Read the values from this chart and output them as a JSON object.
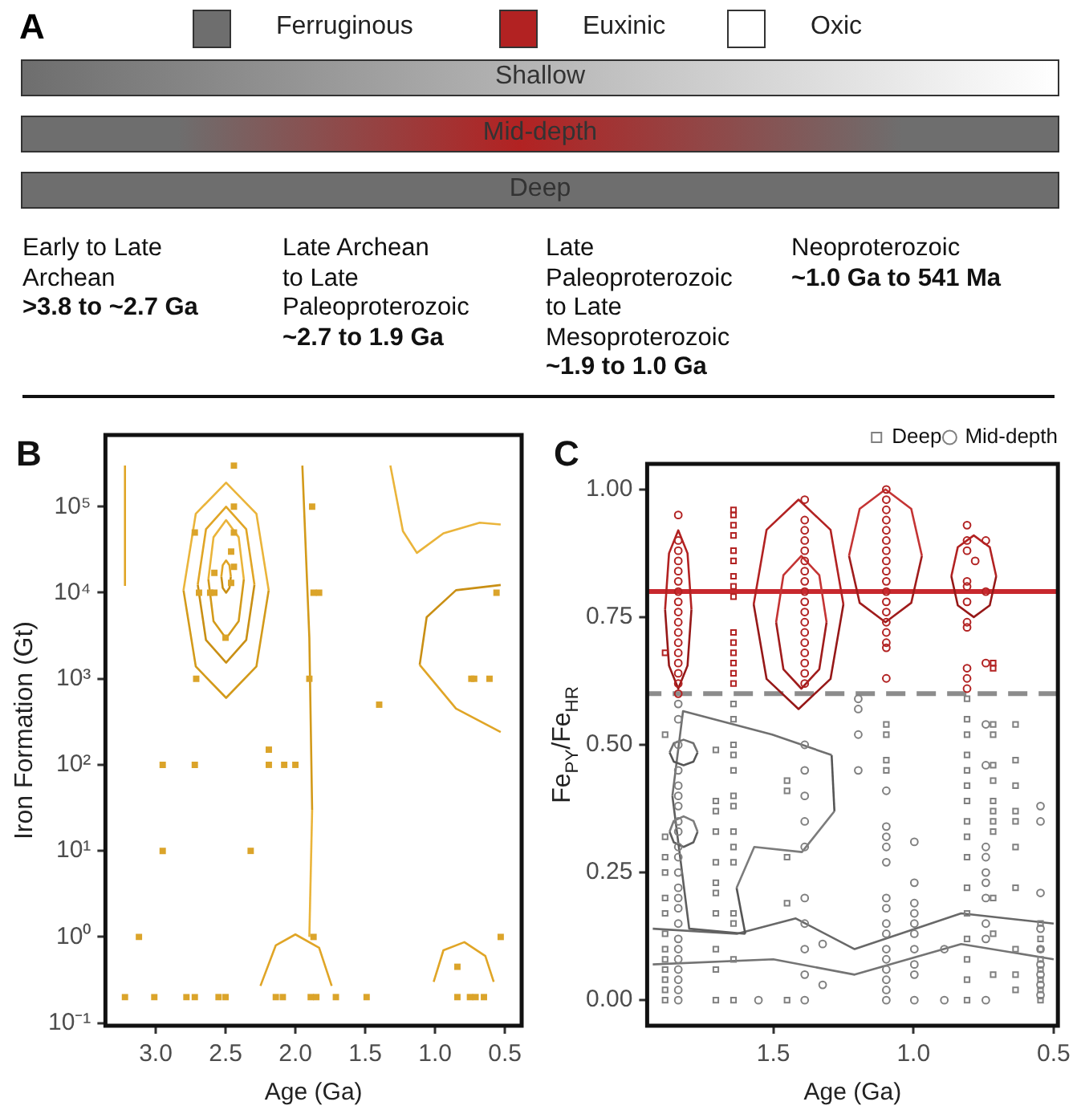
{
  "chart_data": [
    {
      "type": "other",
      "title": "A",
      "categories": [
        "Ferruginous",
        "Euxinic",
        "Oxic"
      ],
      "colors": [
        "#6e6e6e",
        "#b22222",
        "#ffffff"
      ],
      "y_categories": [
        "Shallow",
        "Mid-depth",
        "Deep"
      ],
      "annotations": [
        "Early to Late\nArchean",
        ">3.8 to ~2.7 Ga",
        "Late Archean\nto Late\nPaleoproterozoic",
        "~2.7 to 1.9 Ga",
        "Late\nPaleoproterozoic\nto Late\nMesoproterozoic",
        "~1.9 to 1.0 Ga",
        "Neoproterozoic",
        "~1.0 Ga to 541 Ma"
      ]
    },
    {
      "type": "scatter",
      "title": "B",
      "xlabel": "Age (Ga)",
      "ylabel": "Iron Formation (Gt)",
      "log": "y",
      "grid": false,
      "xlim": [
        3.36,
        0.38
      ],
      "xticks": [
        {
          "value": 3,
          "label": "3.0"
        },
        2.5,
        {
          "value": 2,
          "label": "2.0"
        },
        1.5,
        {
          "value": 1,
          "label": "1.0"
        },
        0.5
      ],
      "ylim": [
        0.093,
        680000
      ],
      "yticks": [
        {
          "value": 0.1,
          "label": "10⁻¹"
        },
        {
          "value": 1,
          "label": "10⁰"
        },
        {
          "value": 10,
          "label": "10¹"
        },
        {
          "value": 100,
          "label": "10²"
        },
        {
          "value": 1000,
          "label": "10³"
        },
        {
          "value": 10000,
          "label": "10⁴"
        },
        {
          "value": 100000,
          "label": "10⁵"
        }
      ],
      "series": [
        {
          "type": "scatter",
          "marker": "square",
          "color": "#dba42a",
          "x": [
            3.22,
            3.01,
            2.78,
            2.72,
            2.55,
            2.5,
            2.14,
            2.09,
            1.89,
            1.85,
            1.71,
            1.49,
            0.84,
            0.75,
            0.71,
            0.65,
            3.12,
            2.95,
            2.95,
            2.72,
            2.44,
            2.44,
            2.44,
            2.46,
            2.44,
            2.58,
            2.46,
            2.69,
            2.61,
            2.58,
            2.5,
            2.71,
            2.72,
            2.19,
            2.19,
            2.08,
            2.0,
            2.32,
            1.88,
            1.87,
            1.83,
            1.9,
            1.87,
            1.4,
            0.74,
            0.72,
            0.61,
            0.56,
            0.53,
            0.84
          ],
          "values": [
            0.2,
            0.2,
            0.2,
            0.2,
            0.2,
            0.2,
            0.2,
            0.2,
            0.2,
            0.2,
            0.2,
            0.2,
            0.2,
            0.2,
            0.2,
            0.2,
            1,
            100,
            10,
            50000,
            300000,
            100000,
            50000,
            30000,
            20000,
            17000,
            13000,
            10000,
            10000,
            10000,
            3000,
            1000,
            100,
            150,
            100,
            100,
            100,
            10,
            100000,
            10000,
            10000,
            1000,
            1,
            500,
            1000,
            1000,
            1000,
            10000,
            1,
            0.45
          ]
        },
        {
          "type": "line",
          "marker": "none",
          "color": "#e0a526",
          "x": [
            2.462,
            2.472,
            2.496,
            2.52,
            2.53
          ],
          "values": [
            15400,
            20900,
            23700,
            20900,
            15400
          ]
        },
        {
          "type": "line",
          "marker": "none",
          "color": "#c98f14",
          "x": [
            2.462,
            2.472,
            2.496,
            2.52,
            2.53
          ],
          "values": [
            15400,
            11350,
            10000,
            11350,
            15400
          ]
        },
        {
          "type": "line",
          "marker": "none",
          "color": "#eab43a",
          "x": [
            2.369,
            2.406,
            2.496,
            2.586,
            2.623
          ],
          "values": [
            14300,
            44100,
            69800,
            44100,
            14300
          ]
        },
        {
          "type": "line",
          "marker": "none",
          "color": "#d39a1a",
          "x": [
            2.369,
            2.406,
            2.496,
            2.586,
            2.623
          ],
          "values": [
            14300,
            4660,
            2940,
            4660,
            14300
          ]
        },
        {
          "type": "line",
          "marker": "none",
          "color": "#e0a526",
          "x": [
            2.293,
            2.352,
            2.496,
            2.64,
            2.699
          ],
          "values": [
            12400,
            54600,
            100000,
            54600,
            12400
          ]
        },
        {
          "type": "line",
          "marker": "none",
          "color": "#c98f14",
          "x": [
            2.293,
            2.352,
            2.496,
            2.64,
            2.699
          ],
          "values": [
            12400,
            2820,
            1540,
            2820,
            12400
          ]
        },
        {
          "type": "line",
          "marker": "none",
          "color": "#eab43a",
          "x": [
            2.191,
            2.279,
            2.496,
            2.713,
            2.801
          ],
          "values": [
            10700,
            82800,
            190000,
            82800,
            10700
          ]
        },
        {
          "type": "line",
          "marker": "none",
          "color": "#d39a1a",
          "x": [
            2.191,
            2.279,
            2.496,
            2.713,
            2.801
          ],
          "values": [
            10700,
            1390,
            600,
            1390,
            10700
          ]
        },
        {
          "type": "line",
          "marker": "none",
          "color": "#e0a526",
          "x": [
            1.74,
            1.83,
            2.0,
            2.14,
            2.25
          ],
          "values": [
            0.27,
            0.75,
            1.07,
            0.8,
            0.27
          ]
        },
        {
          "type": "line",
          "marker": "none",
          "color": "#e0a526",
          "x": [
            0.58,
            0.64,
            0.79,
            0.94,
            1.01
          ],
          "values": [
            0.3,
            0.6,
            0.87,
            0.7,
            0.3
          ]
        },
        {
          "type": "line",
          "marker": "none",
          "color": "#e0a526",
          "x": [
            0.53,
            0.85,
            1.11
          ],
          "values": [
            240,
            450,
            1450
          ]
        },
        {
          "type": "line",
          "marker": "none",
          "color": "#c98f14",
          "x": [
            0.53,
            0.85,
            1.06,
            1.11
          ],
          "values": [
            12300,
            10700,
            5200,
            1450
          ]
        },
        {
          "type": "line",
          "marker": "none",
          "color": "#eab43a",
          "x": [
            0.53,
            0.68,
            0.94,
            1.13,
            1.23,
            1.32
          ],
          "values": [
            62000,
            65000,
            49000,
            29000,
            52000,
            300000
          ]
        },
        {
          "type": "line",
          "marker": "none",
          "color": "#e0a526",
          "x": [
            3.22,
            3.22
          ],
          "values": [
            12000,
            300000
          ]
        },
        {
          "type": "line",
          "marker": "none",
          "color": "#d39a1a",
          "x": [
            1.88,
            1.9,
            1.95
          ],
          "values": [
            30,
            3000,
            300000
          ]
        },
        {
          "type": "line",
          "marker": "none",
          "color": "#eab43a",
          "x": [
            1.88,
            1.9
          ],
          "values": [
            30,
            1
          ]
        }
      ]
    },
    {
      "type": "scatter",
      "title": "C",
      "xlabel": "Age (Ga)",
      "ylabel": "Fe$_{PY}$/Fe$_{HR}$",
      "grid": false,
      "legend": "top right",
      "xlim": [
        1.95,
        0.485
      ],
      "xticks": [
        1.5,
        {
          "value": 1,
          "label": "1.0"
        },
        0.5
      ],
      "ylim": [
        -0.05,
        1.05
      ],
      "yticks": [
        {
          "value": 0,
          "label": "0.00"
        },
        0.25,
        {
          "value": 0.5,
          "label": "0.50"
        },
        0.75,
        {
          "value": 1,
          "label": "1.00"
        }
      ],
      "ref_lines": [
        {
          "axis": "y",
          "value": 0.8,
          "color": "#c8282e",
          "line_style": "solid"
        },
        {
          "axis": "y",
          "value": 0.6,
          "color": "#8c8c8c",
          "line_style": "dashed"
        }
      ],
      "series": [
        {
          "type": "scatter",
          "name": "Deep",
          "marker": "square",
          "color": "#808080",
          "x": [
            1.886,
            1.886,
            1.886,
            1.886,
            1.886,
            1.886,
            1.886,
            1.886,
            1.886,
            1.886,
            1.886,
            1.886,
            1.886,
            1.705,
            1.705,
            1.705,
            1.705,
            1.705,
            1.705,
            1.705,
            1.705,
            1.705,
            1.705,
            1.705,
            1.642,
            1.642,
            1.642,
            1.642,
            1.642,
            1.642,
            1.642,
            1.642,
            1.642,
            1.642,
            1.642,
            1.642,
            1.642,
            1.642,
            1.451,
            1.451,
            1.451,
            1.451,
            1.451,
            1.097,
            1.097,
            1.097,
            1.097,
            0.809,
            0.809,
            0.809,
            0.809,
            0.809,
            0.809,
            0.809,
            0.809,
            0.809,
            0.809,
            0.809,
            0.809,
            0.809,
            0.809,
            0.809,
            0.809,
            0.716,
            0.716,
            0.716,
            0.716,
            0.716,
            0.716,
            0.716,
            0.716,
            0.716,
            0.716,
            0.716,
            0.636,
            0.636,
            0.636,
            0.636,
            0.636,
            0.636,
            0.636,
            0.636,
            0.636,
            0.636,
            0.547,
            0.547,
            0.547,
            0.547,
            0.547,
            0.547,
            0.547,
            0.547
          ],
          "values": [
            0.52,
            0.32,
            0.28,
            0.25,
            0.2,
            0.17,
            0.13,
            0.1,
            0.08,
            0.06,
            0.04,
            0.02,
            0.0,
            0.49,
            0.39,
            0.37,
            0.33,
            0.27,
            0.23,
            0.21,
            0.17,
            0.1,
            0.06,
            0.0,
            0.58,
            0.55,
            0.5,
            0.48,
            0.45,
            0.4,
            0.38,
            0.33,
            0.3,
            0.27,
            0.17,
            0.15,
            0.08,
            0.0,
            0.43,
            0.41,
            0.28,
            0.19,
            0.0,
            0.54,
            0.52,
            0.47,
            0.45,
            0.59,
            0.55,
            0.52,
            0.48,
            0.45,
            0.42,
            0.39,
            0.35,
            0.32,
            0.28,
            0.22,
            0.17,
            0.12,
            0.08,
            0.04,
            0.0,
            0.54,
            0.52,
            0.46,
            0.43,
            0.39,
            0.37,
            0.35,
            0.33,
            0.2,
            0.13,
            0.05,
            0.54,
            0.47,
            0.42,
            0.37,
            0.35,
            0.3,
            0.22,
            0.1,
            0.05,
            0.02,
            0.15,
            0.12,
            0.1,
            0.08,
            0.06,
            0.04,
            0.02,
            0.0
          ]
        },
        {
          "type": "scatter",
          "name": "Mid-depth",
          "marker": "circle",
          "color": "#808080",
          "x": [
            1.839,
            1.839,
            1.839,
            1.839,
            1.839,
            1.839,
            1.839,
            1.839,
            1.839,
            1.839,
            1.839,
            1.839,
            1.839,
            1.839,
            1.839,
            1.839,
            1.839,
            1.839,
            1.839,
            1.839,
            1.839,
            1.839,
            1.839,
            1.388,
            1.388,
            1.388,
            1.388,
            1.388,
            1.388,
            1.388,
            1.388,
            1.388,
            1.388,
            1.553,
            1.324,
            1.324,
            1.197,
            1.197,
            1.197,
            1.197,
            1.097,
            1.097,
            1.097,
            1.097,
            1.097,
            1.097,
            1.097,
            1.097,
            1.097,
            1.097,
            1.097,
            1.097,
            1.097,
            1.097,
            1.097,
            0.997,
            0.997,
            0.997,
            0.997,
            0.997,
            0.997,
            0.997,
            0.997,
            0.997,
            0.997,
            0.89,
            0.89,
            0.742,
            0.742,
            0.742,
            0.742,
            0.742,
            0.742,
            0.742,
            0.742,
            0.742,
            0.742,
            0.547,
            0.547,
            0.547,
            0.547,
            0.547,
            0.547,
            0.547,
            0.547,
            0.547
          ],
          "values": [
            0.58,
            0.55,
            0.5,
            0.45,
            0.42,
            0.4,
            0.38,
            0.35,
            0.33,
            0.3,
            0.28,
            0.25,
            0.22,
            0.2,
            0.18,
            0.15,
            0.12,
            0.1,
            0.08,
            0.06,
            0.04,
            0.02,
            0.0,
            0.5,
            0.45,
            0.4,
            0.35,
            0.3,
            0.2,
            0.15,
            0.1,
            0.05,
            0.0,
            0.0,
            0.11,
            0.03,
            0.59,
            0.57,
            0.52,
            0.45,
            0.41,
            0.34,
            0.32,
            0.3,
            0.27,
            0.2,
            0.18,
            0.15,
            0.13,
            0.1,
            0.08,
            0.06,
            0.04,
            0.02,
            0.0,
            0.31,
            0.23,
            0.19,
            0.17,
            0.15,
            0.13,
            0.1,
            0.07,
            0.05,
            0.0,
            0.1,
            0.0,
            0.54,
            0.46,
            0.3,
            0.28,
            0.25,
            0.23,
            0.2,
            0.15,
            0.12,
            0.0,
            0.38,
            0.35,
            0.21,
            0.14,
            0.1,
            0.07,
            0.05,
            0.03,
            0.01
          ]
        },
        {
          "type": "scatter",
          "marker": "square",
          "color": "#b22222",
          "x": [
            1.642,
            1.642,
            1.642,
            1.642,
            1.642,
            1.642,
            1.642,
            1.642,
            1.642,
            1.642,
            1.642,
            1.642,
            1.642,
            1.642,
            1.642,
            1.886,
            0.716,
            0.716
          ],
          "values": [
            0.96,
            0.95,
            0.93,
            0.91,
            0.88,
            0.86,
            0.83,
            0.81,
            0.79,
            0.72,
            0.7,
            0.68,
            0.66,
            0.64,
            0.62,
            0.68,
            0.65,
            0.66
          ]
        },
        {
          "type": "scatter",
          "marker": "circle",
          "color": "#b22222",
          "x": [
            1.839,
            1.839,
            1.839,
            1.839,
            1.839,
            1.839,
            1.839,
            1.839,
            1.839,
            1.839,
            1.839,
            1.839,
            1.839,
            1.839,
            1.839,
            1.839,
            1.839,
            1.388,
            1.388,
            1.388,
            1.388,
            1.388,
            1.388,
            1.388,
            1.388,
            1.388,
            1.388,
            1.388,
            1.388,
            1.388,
            1.388,
            1.388,
            1.388,
            1.388,
            1.388,
            1.097,
            1.097,
            1.097,
            1.097,
            1.097,
            1.097,
            1.097,
            1.097,
            1.097,
            1.097,
            1.097,
            1.097,
            1.097,
            1.097,
            1.097,
            1.097,
            1.097,
            1.097,
            0.809,
            0.809,
            0.809,
            0.809,
            0.809,
            0.809,
            0.809,
            0.809,
            0.809,
            0.809,
            0.809,
            0.742,
            0.742,
            0.742,
            0.78
          ],
          "values": [
            0.95,
            0.9,
            0.88,
            0.86,
            0.84,
            0.82,
            0.8,
            0.78,
            0.76,
            0.74,
            0.72,
            0.7,
            0.68,
            0.66,
            0.64,
            0.62,
            0.6,
            0.98,
            0.94,
            0.92,
            0.9,
            0.88,
            0.86,
            0.84,
            0.82,
            0.8,
            0.78,
            0.76,
            0.74,
            0.72,
            0.7,
            0.68,
            0.66,
            0.64,
            0.62,
            1.0,
            0.98,
            0.96,
            0.94,
            0.92,
            0.9,
            0.88,
            0.86,
            0.84,
            0.82,
            0.8,
            0.78,
            0.76,
            0.74,
            0.72,
            0.7,
            0.69,
            0.63,
            0.93,
            0.9,
            0.88,
            0.82,
            0.81,
            0.78,
            0.74,
            0.73,
            0.65,
            0.63,
            0.61,
            0.9,
            0.8,
            0.66,
            0.86
          ]
        },
        {
          "type": "line",
          "marker": "none",
          "color": "#b22222",
          "x": [
            1.792,
            1.806,
            1.839,
            1.872,
            1.886
          ],
          "values": [
            0.765,
            0.875,
            0.92,
            0.875,
            0.765
          ]
        },
        {
          "type": "line",
          "marker": "none",
          "color": "#961818",
          "x": [
            1.792,
            1.806,
            1.839,
            1.872,
            1.886
          ],
          "values": [
            0.765,
            0.655,
            0.61,
            0.655,
            0.765
          ]
        },
        {
          "type": "line",
          "marker": "none",
          "color": "#c43434",
          "x": [
            1.31,
            1.336,
            1.4,
            1.464,
            1.49
          ],
          "values": [
            0.74,
            0.832,
            0.87,
            0.832,
            0.74
          ]
        },
        {
          "type": "line",
          "marker": "none",
          "color": "#a01c1c",
          "x": [
            1.31,
            1.336,
            1.4,
            1.464,
            1.49
          ],
          "values": [
            0.74,
            0.648,
            0.61,
            0.648,
            0.74
          ]
        },
        {
          "type": "line",
          "marker": "none",
          "color": "#b22222",
          "x": [
            1.25,
            1.296,
            1.41,
            1.524,
            1.57
          ],
          "values": [
            0.775,
            0.921,
            0.98,
            0.921,
            0.775
          ]
        },
        {
          "type": "line",
          "marker": "none",
          "color": "#961818",
          "x": [
            1.25,
            1.296,
            1.41,
            1.524,
            1.57
          ],
          "values": [
            0.775,
            0.629,
            0.57,
            0.629,
            0.775
          ]
        },
        {
          "type": "line",
          "marker": "none",
          "color": "#c43434",
          "x": [
            0.97,
            1.008,
            1.1,
            1.192,
            1.23
          ],
          "values": [
            0.87,
            0.962,
            1.0,
            0.962,
            0.87
          ]
        },
        {
          "type": "line",
          "marker": "none",
          "color": "#a01c1c",
          "x": [
            0.97,
            1.008,
            1.1,
            1.192,
            1.23
          ],
          "values": [
            0.87,
            0.778,
            0.74,
            0.778,
            0.87
          ]
        },
        {
          "type": "line",
          "marker": "none",
          "color": "#b22222",
          "x": [
            0.705,
            0.728,
            0.785,
            0.842,
            0.865
          ],
          "values": [
            0.83,
            0.887,
            0.91,
            0.887,
            0.83
          ]
        },
        {
          "type": "line",
          "marker": "none",
          "color": "#961818",
          "x": [
            0.705,
            0.728,
            0.785,
            0.842,
            0.865
          ],
          "values": [
            0.83,
            0.773,
            0.75,
            0.773,
            0.83
          ]
        },
        {
          "type": "line",
          "marker": "none",
          "color": "#707070",
          "x": [
            1.77,
            1.785,
            1.82,
            1.855,
            1.87
          ],
          "values": [
            0.485,
            0.503,
            0.51,
            0.503,
            0.485
          ]
        },
        {
          "type": "line",
          "marker": "none",
          "color": "#555555",
          "x": [
            1.77,
            1.785,
            1.82,
            1.855,
            1.87
          ],
          "values": [
            0.485,
            0.467,
            0.46,
            0.467,
            0.485
          ]
        },
        {
          "type": "line",
          "marker": "none",
          "color": "#7c7c7c",
          "x": [
            1.77,
            1.785,
            1.82,
            1.855,
            1.87
          ],
          "values": [
            0.33,
            0.351,
            0.36,
            0.351,
            0.33
          ]
        },
        {
          "type": "line",
          "marker": "none",
          "color": "#5e5e5e",
          "x": [
            1.77,
            1.785,
            1.82,
            1.855,
            1.87
          ],
          "values": [
            0.33,
            0.309,
            0.3,
            0.309,
            0.33
          ]
        },
        {
          "type": "line",
          "marker": "none",
          "color": "#707070",
          "x": [
            1.292,
            1.504,
            1.822,
            1.86
          ],
          "values": [
            0.48,
            0.52,
            0.566,
            0.4
          ]
        },
        {
          "type": "line",
          "marker": "none",
          "color": "#555555",
          "x": [
            1.282,
            1.292
          ],
          "values": [
            0.37,
            0.48
          ]
        },
        {
          "type": "line",
          "marker": "none",
          "color": "#7c7c7c",
          "x": [
            1.282,
            1.398,
            1.568,
            1.631
          ],
          "values": [
            0.37,
            0.29,
            0.3,
            0.22
          ]
        },
        {
          "type": "line",
          "marker": "none",
          "color": "#555555",
          "x": [
            1.6,
            1.631
          ],
          "values": [
            0.13,
            0.22
          ]
        },
        {
          "type": "line",
          "marker": "none",
          "color": "#5e5e5e",
          "x": [
            1.6,
            1.8,
            1.86
          ],
          "values": [
            0.13,
            0.14,
            0.4
          ]
        },
        {
          "type": "line",
          "marker": "none",
          "color": "#686868",
          "x": [
            0.5,
            0.83,
            1.21,
            1.42,
            1.63,
            1.93
          ],
          "values": [
            0.15,
            0.17,
            0.1,
            0.16,
            0.13,
            0.14
          ]
        },
        {
          "type": "line",
          "marker": "none",
          "color": "#747474",
          "x": [
            0.5,
            0.83,
            1.21,
            1.5,
            1.93
          ],
          "values": [
            0.08,
            0.11,
            0.05,
            0.08,
            0.07
          ]
        }
      ]
    }
  ]
}
